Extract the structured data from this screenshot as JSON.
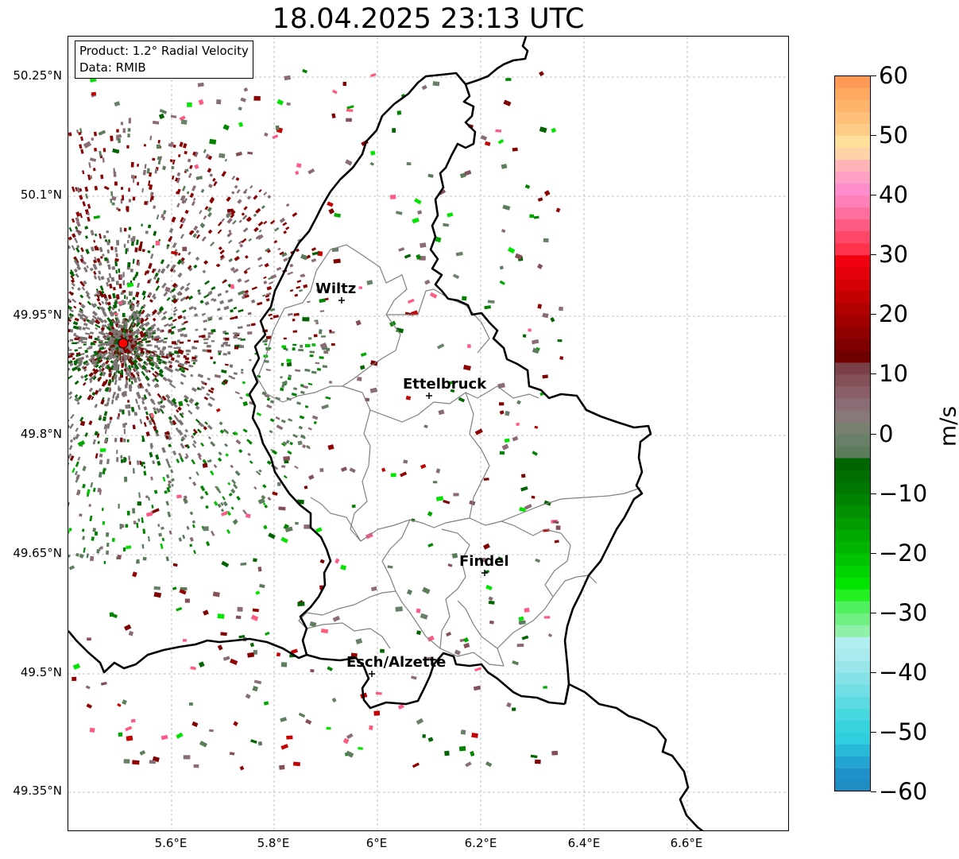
{
  "title": "18.04.2025 23:13 UTC",
  "info": {
    "product": "Product: 1.2° Radial Velocity",
    "source": "Data: RMIB"
  },
  "axes": {
    "lon_ticks": [
      "5.6°E",
      "5.8°E",
      "6°E",
      "6.2°E",
      "6.4°E",
      "6.6°E"
    ],
    "lat_ticks": [
      "50.25°N",
      "50.1°N",
      "49.95°N",
      "49.8°N",
      "49.65°N",
      "49.5°N",
      "49.35°N"
    ]
  },
  "colorbar": {
    "label": "m/s",
    "ticks": [
      "60",
      "50",
      "40",
      "30",
      "20",
      "10",
      "0",
      "−10",
      "−20",
      "−30",
      "−40",
      "−50",
      "−60"
    ],
    "range": [
      -60,
      60
    ]
  },
  "cities": [
    "Wiltz",
    "Ettelbruck",
    "Findel",
    "Esch/Alzette"
  ],
  "colors": {
    "radar_site": "#ff0000",
    "border": "#000000",
    "district_border": "#808080"
  }
}
